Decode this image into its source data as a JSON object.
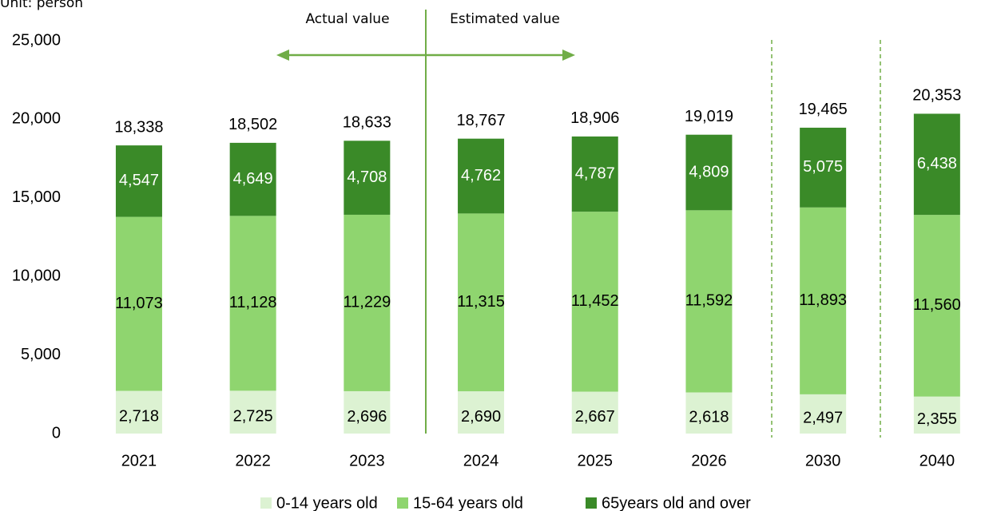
{
  "chart_data": {
    "type": "stacked_bar",
    "unit_label": "Unit: person",
    "annotations": [
      "Actual value",
      "Estimated value"
    ],
    "categories": [
      "2021",
      "2022",
      "2023",
      "2024",
      "2025",
      "2026",
      "2030",
      "2040"
    ],
    "series": [
      {
        "name": "0-14 years old",
        "color": "#dcf2d2",
        "values": [
          2718,
          2725,
          2696,
          2690,
          2667,
          2618,
          2497,
          2355
        ],
        "value_labels": [
          "2,718",
          "2,725",
          "2,696",
          "2,690",
          "2,667",
          "2,618",
          "2,497",
          "2,355"
        ]
      },
      {
        "name": "15-64 years old",
        "color": "#8fd56f",
        "values": [
          11073,
          11128,
          11229,
          11315,
          11452,
          11592,
          11893,
          11560
        ],
        "value_labels": [
          "11,073",
          "11,128",
          "11,229",
          "11,315",
          "11,452",
          "11,592",
          "11,893",
          "11,560"
        ]
      },
      {
        "name": "65years old and over",
        "color": "#3a8a28",
        "values": [
          4547,
          4649,
          4708,
          4762,
          4787,
          4809,
          5075,
          6438
        ],
        "value_labels": [
          "4,547",
          "4,649",
          "4,708",
          "4,762",
          "4,787",
          "4,809",
          "5,075",
          "6,438"
        ]
      }
    ],
    "totals": [
      18338,
      18502,
      18633,
      18767,
      18906,
      19019,
      19465,
      20353
    ],
    "total_labels": [
      "18,338",
      "18,502",
      "18,633",
      "18,767",
      "18,906",
      "19,019",
      "19,465",
      "20,353"
    ],
    "ylim": [
      0,
      25000
    ],
    "yticks": [
      0,
      {
        "value": 5000,
        "label": "5,000"
      },
      {
        "value": 10000,
        "label": "10,000"
      },
      {
        "value": 15000,
        "label": "15,000"
      },
      {
        "value": 20000,
        "label": "20,000"
      },
      {
        "value": 25000,
        "label": "25,000"
      }
    ],
    "legend": "bottom"
  }
}
